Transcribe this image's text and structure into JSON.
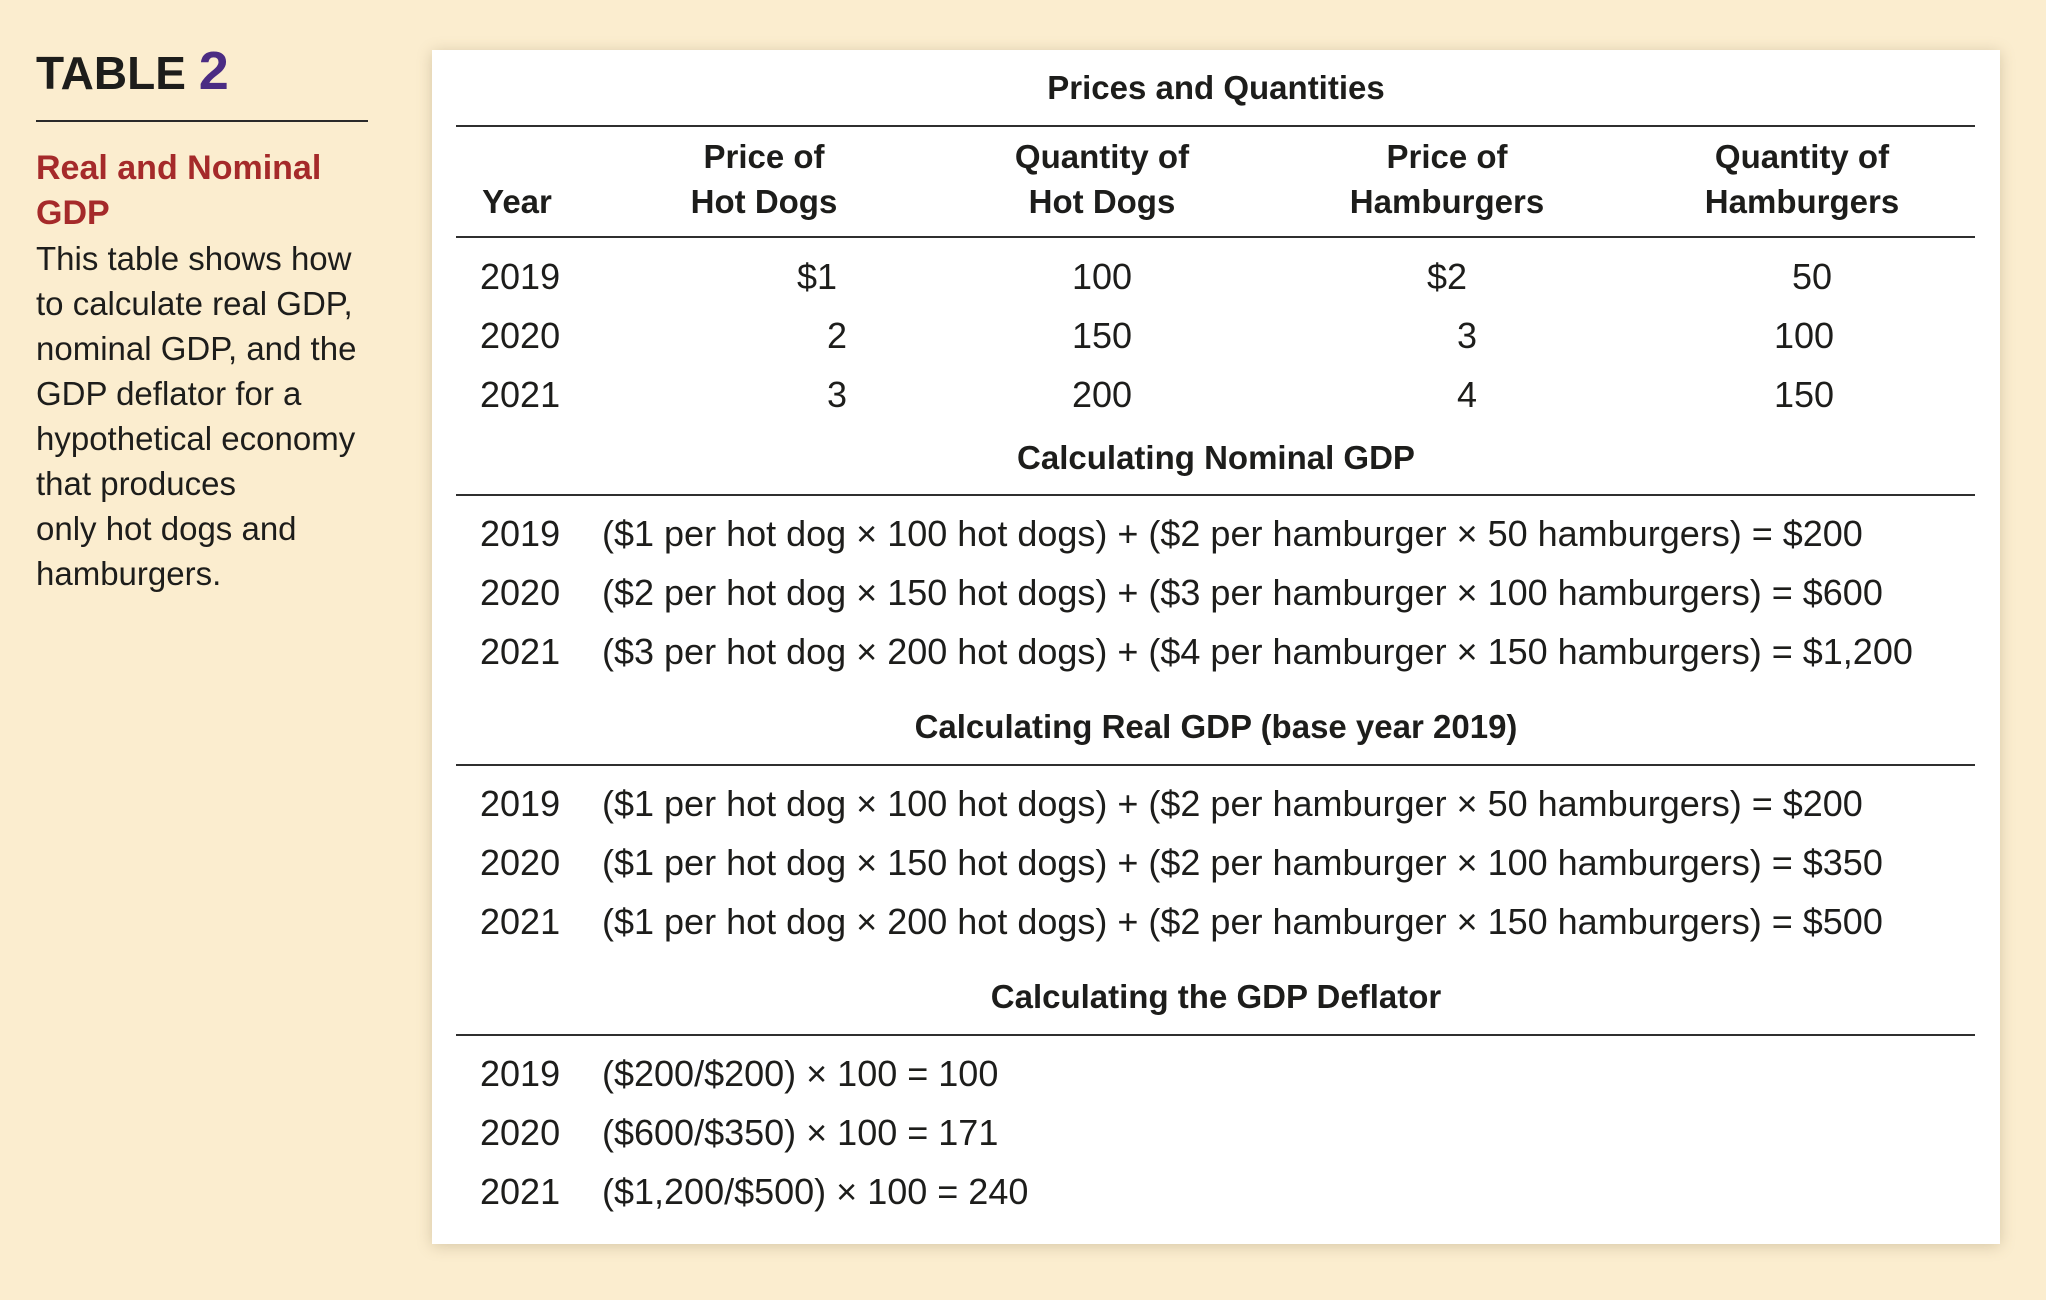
{
  "sidebar": {
    "label": "TABLE",
    "number": "2",
    "title": "Real and Nominal GDP",
    "description": "This table shows how\nto calculate real GDP,\nnominal GDP, and the\nGDP deflator for a\nhypothetical economy\nthat produces\nonly hot dogs and\nhamburgers."
  },
  "prices_quantities": {
    "title": "Prices and Quantities",
    "headers": {
      "year": "Year",
      "price_hot_dogs": "Price of\nHot Dogs",
      "qty_hot_dogs": "Quantity of\nHot Dogs",
      "price_hamburgers": "Price of\nHamburgers",
      "qty_hamburgers": "Quantity of\nHamburgers"
    },
    "rows": [
      {
        "year": "2019",
        "price_hot_dogs": "$1",
        "qty_hot_dogs": "100",
        "price_hamburgers": "$2",
        "qty_hamburgers": "50"
      },
      {
        "year": "2020",
        "price_hot_dogs": "2",
        "qty_hot_dogs": "150",
        "price_hamburgers": "3",
        "qty_hamburgers": "100"
      },
      {
        "year": "2021",
        "price_hot_dogs": "3",
        "qty_hot_dogs": "200",
        "price_hamburgers": "4",
        "qty_hamburgers": "150"
      }
    ]
  },
  "nominal_gdp": {
    "title": "Calculating Nominal GDP",
    "rows": [
      {
        "year": "2019",
        "formula": "($1 per hot dog × 100 hot dogs) + ($2 per hamburger × 50 hamburgers) = $200"
      },
      {
        "year": "2020",
        "formula": "($2 per hot dog × 150 hot dogs) + ($3 per hamburger × 100 hamburgers) = $600"
      },
      {
        "year": "2021",
        "formula": "($3 per hot dog × 200 hot dogs) + ($4 per hamburger × 150 hamburgers) = $1,200"
      }
    ]
  },
  "real_gdp": {
    "title": "Calculating Real GDP (base year 2019)",
    "rows": [
      {
        "year": "2019",
        "formula": "($1 per hot dog × 100 hot dogs) + ($2 per hamburger × 50 hamburgers) = $200"
      },
      {
        "year": "2020",
        "formula": "($1 per hot dog × 150 hot dogs) + ($2 per hamburger × 100 hamburgers) = $350"
      },
      {
        "year": "2021",
        "formula": "($1 per hot dog × 200 hot dogs) + ($2 per hamburger × 150 hamburgers) = $500"
      }
    ]
  },
  "gdp_deflator": {
    "title": "Calculating the GDP Deflator",
    "rows": [
      {
        "year": "2019",
        "formula": "($200/$200) × 100 = 100"
      },
      {
        "year": "2020",
        "formula": "($600/$350) × 100 = 171"
      },
      {
        "year": "2021",
        "formula": "($1,200/$500) × 100 = 240"
      }
    ]
  },
  "colors": {
    "background": "#fbedcf",
    "title_red": "#a52a2a",
    "number_purple": "#4b2c83",
    "card": "#ffffff"
  }
}
